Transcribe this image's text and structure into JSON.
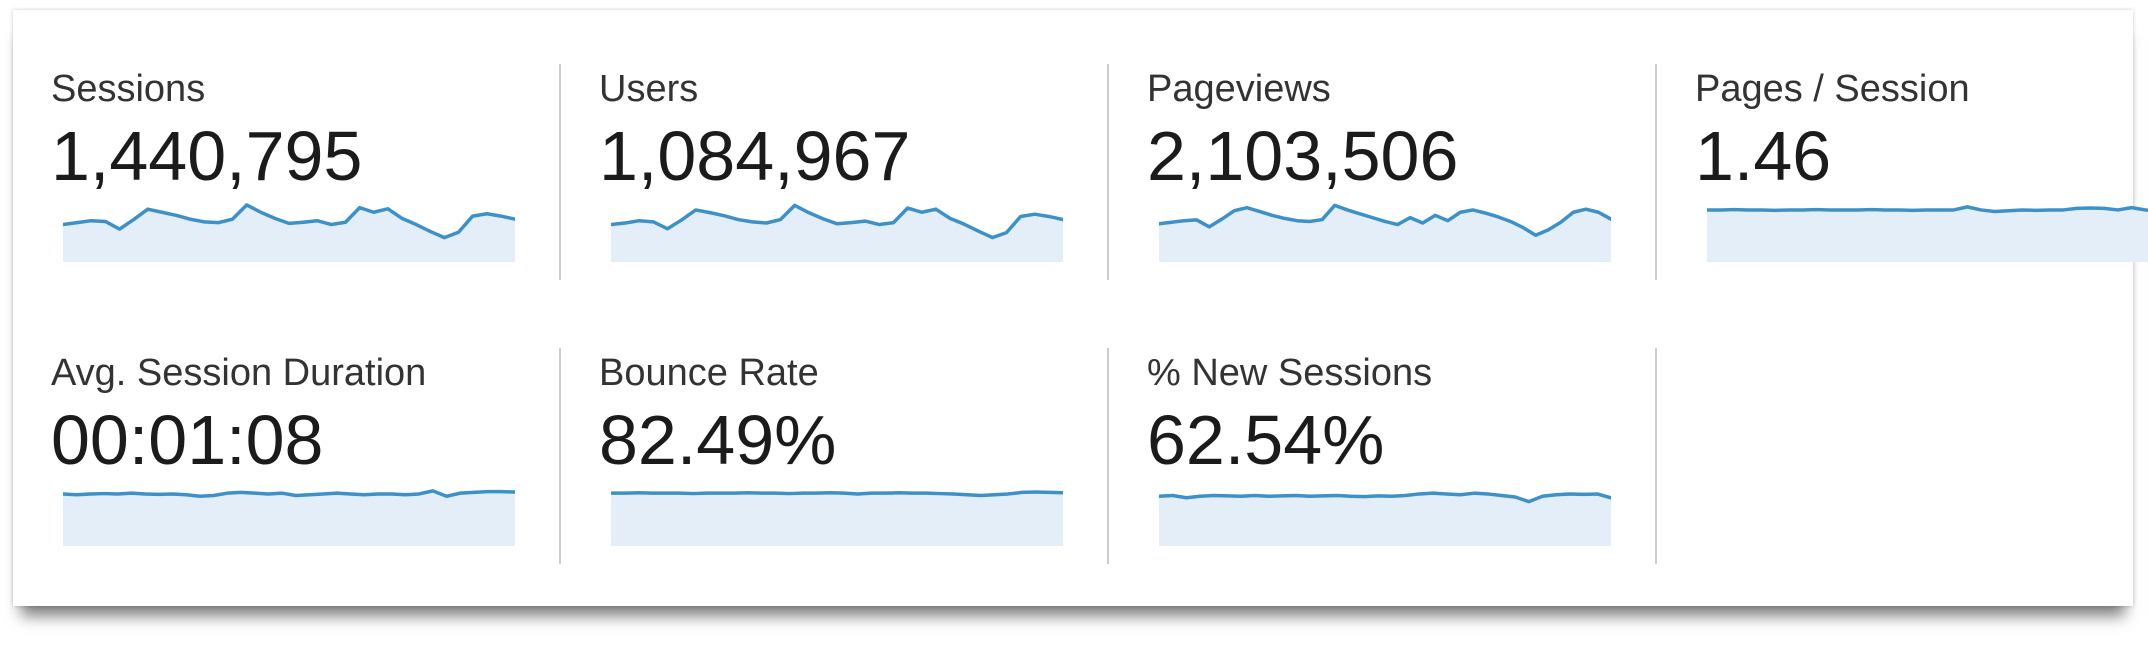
{
  "panel_name": "audience-overview-metrics",
  "colors": {
    "spark_line": "#3d91c8",
    "spark_fill": "#e4eef9",
    "divider": "#cccccc",
    "label_text": "#333333",
    "value_text": "#1b1b1b",
    "card_background": "#ffffff"
  },
  "metrics": [
    {
      "label": "Sessions",
      "value": "1,440,795",
      "spark": [
        0.42,
        0.47,
        0.52,
        0.5,
        0.3,
        0.55,
        0.82,
        0.74,
        0.66,
        0.56,
        0.49,
        0.47,
        0.56,
        0.93,
        0.74,
        0.58,
        0.45,
        0.48,
        0.52,
        0.42,
        0.48,
        0.86,
        0.74,
        0.83,
        0.58,
        0.42,
        0.24,
        0.08,
        0.22,
        0.64,
        0.7,
        0.64,
        0.56
      ]
    },
    {
      "label": "Users",
      "value": "1,084,967",
      "spark": [
        0.42,
        0.46,
        0.52,
        0.49,
        0.31,
        0.54,
        0.8,
        0.73,
        0.65,
        0.55,
        0.49,
        0.46,
        0.55,
        0.92,
        0.73,
        0.57,
        0.44,
        0.47,
        0.51,
        0.42,
        0.47,
        0.85,
        0.74,
        0.82,
        0.58,
        0.43,
        0.25,
        0.08,
        0.21,
        0.63,
        0.69,
        0.63,
        0.55
      ]
    },
    {
      "label": "Pageviews",
      "value": "2,103,506",
      "spark": [
        0.44,
        0.48,
        0.52,
        0.54,
        0.36,
        0.56,
        0.78,
        0.86,
        0.76,
        0.66,
        0.58,
        0.52,
        0.5,
        0.55,
        0.92,
        0.8,
        0.7,
        0.6,
        0.5,
        0.42,
        0.6,
        0.46,
        0.66,
        0.52,
        0.74,
        0.8,
        0.72,
        0.62,
        0.5,
        0.34,
        0.14,
        0.28,
        0.48,
        0.74,
        0.82,
        0.74,
        0.56
      ]
    },
    {
      "label": "Pages / Session",
      "value": "1.46",
      "spark": [
        0.8,
        0.8,
        0.81,
        0.8,
        0.8,
        0.79,
        0.8,
        0.8,
        0.81,
        0.8,
        0.8,
        0.8,
        0.81,
        0.8,
        0.8,
        0.79,
        0.8,
        0.8,
        0.8,
        0.88,
        0.8,
        0.76,
        0.78,
        0.8,
        0.79,
        0.8,
        0.8,
        0.84,
        0.85,
        0.84,
        0.8,
        0.86,
        0.8,
        0.79
      ]
    },
    {
      "label": "Avg. Session Duration",
      "value": "00:01:08",
      "spark": [
        0.8,
        0.78,
        0.8,
        0.81,
        0.8,
        0.82,
        0.8,
        0.79,
        0.8,
        0.78,
        0.74,
        0.76,
        0.82,
        0.84,
        0.82,
        0.8,
        0.82,
        0.76,
        0.78,
        0.8,
        0.82,
        0.8,
        0.78,
        0.8,
        0.8,
        0.78,
        0.8,
        0.88,
        0.74,
        0.82,
        0.84,
        0.86,
        0.86,
        0.85
      ]
    },
    {
      "label": "Bounce Rate",
      "value": "82.49%",
      "spark": [
        0.82,
        0.82,
        0.83,
        0.82,
        0.82,
        0.82,
        0.81,
        0.82,
        0.82,
        0.82,
        0.83,
        0.82,
        0.82,
        0.81,
        0.82,
        0.82,
        0.83,
        0.82,
        0.8,
        0.82,
        0.82,
        0.83,
        0.82,
        0.82,
        0.81,
        0.8,
        0.78,
        0.76,
        0.78,
        0.8,
        0.84,
        0.85,
        0.84,
        0.83
      ]
    },
    {
      "label": "% New Sessions",
      "value": "62.54%",
      "spark": [
        0.74,
        0.76,
        0.7,
        0.74,
        0.76,
        0.75,
        0.74,
        0.76,
        0.74,
        0.75,
        0.76,
        0.74,
        0.75,
        0.76,
        0.74,
        0.73,
        0.75,
        0.74,
        0.76,
        0.8,
        0.82,
        0.8,
        0.78,
        0.82,
        0.8,
        0.76,
        0.72,
        0.6,
        0.74,
        0.78,
        0.8,
        0.79,
        0.8,
        0.7
      ]
    }
  ]
}
